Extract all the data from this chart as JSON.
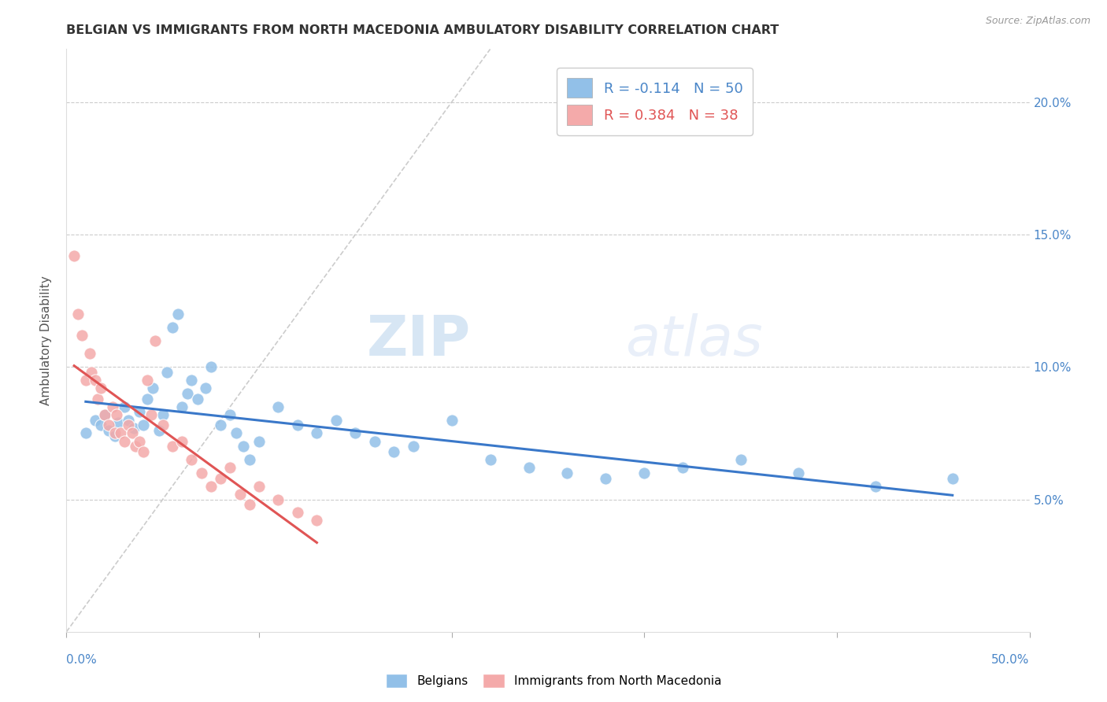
{
  "title": "BELGIAN VS IMMIGRANTS FROM NORTH MACEDONIA AMBULATORY DISABILITY CORRELATION CHART",
  "source": "Source: ZipAtlas.com",
  "ylabel": "Ambulatory Disability",
  "right_yticks": [
    5.0,
    10.0,
    15.0,
    20.0
  ],
  "xlim": [
    0.0,
    0.5
  ],
  "ylim": [
    0.0,
    0.22
  ],
  "legend_blue_r": "-0.114",
  "legend_blue_n": "50",
  "legend_pink_r": "0.384",
  "legend_pink_n": "38",
  "blue_color": "#92c0e8",
  "pink_color": "#f4aaaa",
  "trend_blue_color": "#3a78c9",
  "trend_pink_color": "#e05555",
  "diag_color": "#cccccc",
  "watermark_zip": "ZIP",
  "watermark_atlas": "atlas",
  "belgians_x": [
    0.01,
    0.015,
    0.018,
    0.02,
    0.022,
    0.025,
    0.027,
    0.03,
    0.032,
    0.035,
    0.038,
    0.04,
    0.042,
    0.045,
    0.048,
    0.05,
    0.052,
    0.055,
    0.058,
    0.06,
    0.063,
    0.065,
    0.068,
    0.072,
    0.075,
    0.08,
    0.085,
    0.088,
    0.092,
    0.095,
    0.1,
    0.11,
    0.12,
    0.13,
    0.14,
    0.15,
    0.16,
    0.17,
    0.18,
    0.2,
    0.22,
    0.24,
    0.26,
    0.28,
    0.3,
    0.32,
    0.35,
    0.38,
    0.42,
    0.46
  ],
  "belgians_y": [
    0.075,
    0.08,
    0.078,
    0.082,
    0.076,
    0.074,
    0.079,
    0.085,
    0.08,
    0.077,
    0.083,
    0.078,
    0.088,
    0.092,
    0.076,
    0.082,
    0.098,
    0.115,
    0.12,
    0.085,
    0.09,
    0.095,
    0.088,
    0.092,
    0.1,
    0.078,
    0.082,
    0.075,
    0.07,
    0.065,
    0.072,
    0.085,
    0.078,
    0.075,
    0.08,
    0.075,
    0.072,
    0.068,
    0.07,
    0.08,
    0.065,
    0.062,
    0.06,
    0.058,
    0.06,
    0.062,
    0.065,
    0.06,
    0.055,
    0.058
  ],
  "immig_x": [
    0.004,
    0.006,
    0.008,
    0.01,
    0.012,
    0.013,
    0.015,
    0.016,
    0.018,
    0.02,
    0.022,
    0.024,
    0.025,
    0.026,
    0.028,
    0.03,
    0.032,
    0.034,
    0.036,
    0.038,
    0.04,
    0.042,
    0.044,
    0.046,
    0.05,
    0.055,
    0.06,
    0.065,
    0.07,
    0.075,
    0.08,
    0.085,
    0.09,
    0.095,
    0.1,
    0.11,
    0.12,
    0.13
  ],
  "immig_y": [
    0.142,
    0.12,
    0.112,
    0.095,
    0.105,
    0.098,
    0.095,
    0.088,
    0.092,
    0.082,
    0.078,
    0.085,
    0.075,
    0.082,
    0.075,
    0.072,
    0.078,
    0.075,
    0.07,
    0.072,
    0.068,
    0.095,
    0.082,
    0.11,
    0.078,
    0.07,
    0.072,
    0.065,
    0.06,
    0.055,
    0.058,
    0.062,
    0.052,
    0.048,
    0.055,
    0.05,
    0.045,
    0.042
  ]
}
